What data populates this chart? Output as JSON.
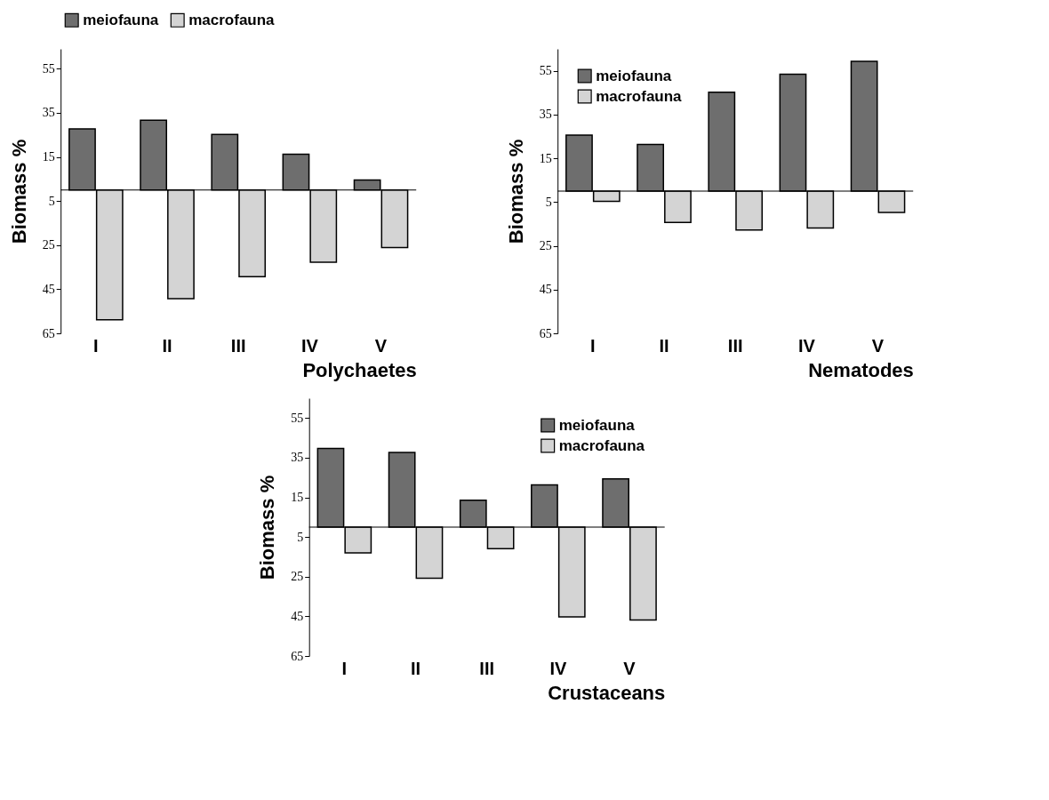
{
  "chart_data": [
    {
      "type": "bar",
      "title": "Polychaetes",
      "ref_lines": [
        {
          "axis": "y",
          "value": 0
        }
      ],
      "ylabel": "Biomass %",
      "categories": [
        "I",
        "II",
        "III",
        "IV",
        "V"
      ],
      "legend": "top",
      "grid": false,
      "ylim": [
        -65,
        64
      ],
      "yticks": [
        55,
        35,
        15,
        {
          "value": -5,
          "label": "5"
        },
        {
          "value": -25,
          "label": "25"
        },
        {
          "value": -45,
          "label": "45"
        },
        {
          "value": -65,
          "label": "65"
        }
      ],
      "series": [
        {
          "name": "meiofauna",
          "color": "#6e6e6e",
          "values": [
            27.7,
            31.6,
            25.2,
            16.2,
            4.5
          ]
        },
        {
          "name": "macrofauna",
          "color": "#d4d4d4",
          "values": [
            -58.9,
            -49.3,
            -39.3,
            -32.7,
            -26.1
          ]
        }
      ]
    },
    {
      "type": "bar",
      "title": "Nematodes",
      "ref_lines": [
        {
          "axis": "y",
          "value": 0
        }
      ],
      "ylabel": "Biomass %",
      "categories": [
        "I",
        "II",
        "III",
        "IV",
        "V"
      ],
      "legend": "top left",
      "grid": false,
      "ylim": [
        -65,
        65
      ],
      "yticks": [
        55,
        35,
        15,
        {
          "value": -5,
          "label": "5"
        },
        {
          "value": -25,
          "label": "25"
        },
        {
          "value": -45,
          "label": "45"
        },
        {
          "value": -65,
          "label": "65"
        }
      ],
      "series": [
        {
          "name": "meiofauna",
          "color": "#6e6e6e",
          "values": [
            25.6,
            21.3,
            45.2,
            53.4,
            59.3
          ]
        },
        {
          "name": "macrofauna",
          "color": "#d4d4d4",
          "values": [
            -4.7,
            -14.3,
            -17.8,
            -16.9,
            -9.8
          ]
        }
      ]
    },
    {
      "type": "bar",
      "title": "Crustaceans",
      "ref_lines": [
        {
          "axis": "y",
          "value": 0
        }
      ],
      "ylabel": "Biomass %",
      "categories": [
        "I",
        "II",
        "III",
        "IV",
        "V"
      ],
      "legend": "top right",
      "grid": false,
      "ylim": [
        -65,
        65
      ],
      "yticks": [
        55,
        35,
        15,
        {
          "value": -5,
          "label": "5"
        },
        {
          "value": -25,
          "label": "25"
        },
        {
          "value": -45,
          "label": "45"
        },
        {
          "value": -65,
          "label": "65"
        }
      ],
      "series": [
        {
          "name": "meiofauna",
          "color": "#6e6e6e",
          "values": [
            39.7,
            37.6,
            13.6,
            21.3,
            24.3
          ]
        },
        {
          "name": "macrofauna",
          "color": "#d4d4d4",
          "values": [
            -13.0,
            -25.8,
            -10.9,
            -45.3,
            -46.8
          ]
        }
      ]
    }
  ]
}
